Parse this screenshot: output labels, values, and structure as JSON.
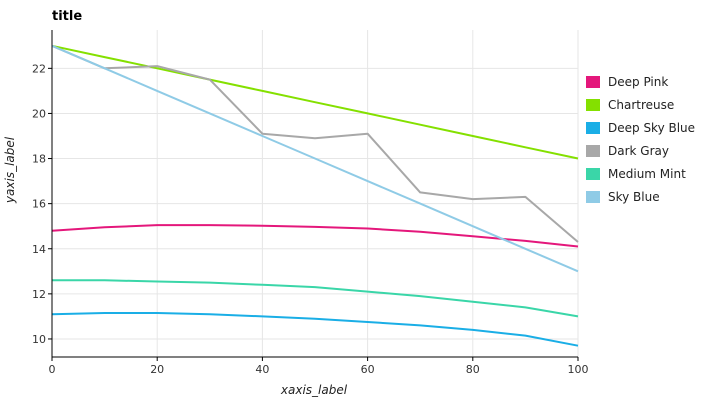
{
  "chart_data": {
    "type": "line",
    "title": "title",
    "xlabel": "xaxis_label",
    "ylabel": "yaxis_label",
    "xlim": [
      0,
      100
    ],
    "ylim": [
      9.2,
      23.7
    ],
    "x_ticks": [
      0,
      20,
      40,
      60,
      80,
      100
    ],
    "y_ticks": [
      10,
      12,
      14,
      16,
      18,
      20,
      22
    ],
    "grid": true,
    "legend_position": "right",
    "x": [
      0,
      10,
      20,
      30,
      40,
      50,
      60,
      70,
      80,
      90,
      100
    ],
    "series": [
      {
        "name": "Deep Pink",
        "color": "#e4177b",
        "values": [
          14.8,
          14.95,
          15.05,
          15.05,
          15.02,
          14.97,
          14.9,
          14.75,
          14.55,
          14.35,
          14.1
        ]
      },
      {
        "name": "Chartreuse",
        "color": "#84e000",
        "values": [
          23.0,
          22.5,
          22.0,
          21.5,
          21.0,
          20.5,
          20.0,
          19.5,
          19.0,
          18.5,
          18.0
        ]
      },
      {
        "name": "Deep Sky Blue",
        "color": "#1aaee6",
        "values": [
          11.1,
          11.15,
          11.15,
          11.1,
          11.0,
          10.9,
          10.75,
          10.6,
          10.4,
          10.15,
          9.7
        ]
      },
      {
        "name": "Dark Gray",
        "color": "#a8a8a8",
        "values": [
          23.0,
          22.0,
          22.1,
          21.5,
          19.1,
          18.9,
          19.1,
          16.5,
          16.2,
          16.3,
          14.3
        ]
      },
      {
        "name": "Medium Mint",
        "color": "#3ad6a8",
        "values": [
          12.6,
          12.6,
          12.55,
          12.5,
          12.4,
          12.3,
          12.1,
          11.9,
          11.65,
          11.4,
          11.0
        ]
      },
      {
        "name": "Sky Blue",
        "color": "#8fcbe6",
        "values": [
          23.0,
          22.0,
          21.0,
          20.0,
          19.0,
          18.0,
          17.0,
          16.0,
          15.0,
          14.0,
          13.0
        ]
      }
    ]
  }
}
